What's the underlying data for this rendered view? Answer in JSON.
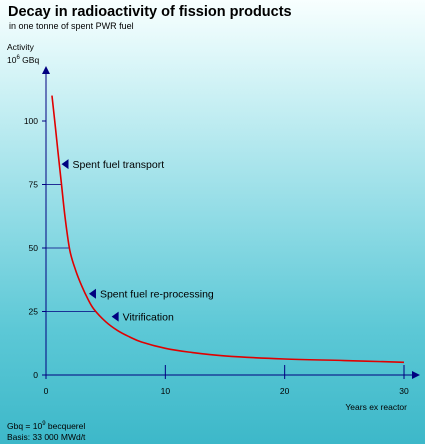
{
  "chart_data": {
    "type": "line",
    "title": "Decay in radioactivity of fission products",
    "subtitle": "in one tonne of spent PWR fuel",
    "ylabel_line1": "Activity",
    "ylabel_line2_base": "10",
    "ylabel_line2_exp": "6",
    "ylabel_line2_unit": " GBq",
    "xlabel": "Years ex reactor",
    "xlim": [
      0,
      30
    ],
    "ylim": [
      0,
      100
    ],
    "x_ticks": [
      0,
      10,
      20,
      30
    ],
    "y_ticks": [
      0,
      25,
      50,
      75,
      100
    ],
    "x_tick_labels": [
      "0",
      "10",
      "20",
      "30"
    ],
    "y_tick_labels": [
      "0",
      "25",
      "50",
      "75",
      "100"
    ],
    "series": [
      {
        "color": "#e00000",
        "x": [
          0.5,
          0.8,
          1.0,
          1.3,
          1.6,
          2.0,
          2.5,
          3.0,
          3.5,
          4.0,
          5.0,
          6.0,
          7.0,
          8.0,
          10.0,
          12.0,
          15.0,
          20.0,
          25.0,
          30.0
        ],
        "y": [
          110,
          97,
          88,
          75,
          62,
          49,
          41,
          35,
          30,
          26,
          21,
          17.5,
          15,
          13,
          10.5,
          9,
          7.5,
          6.3,
          5.7,
          5.0
        ]
      }
    ],
    "annotations": [
      {
        "text": "Spent fuel transport",
        "x": 1.3,
        "y": 83,
        "guide_to_y_axis": true
      },
      {
        "text": "Spent fuel re-processing",
        "x": 3.6,
        "y": 32,
        "guide_to_y_axis": false
      },
      {
        "text": "Vitrification",
        "x": 5.5,
        "y": 23,
        "guide_to_y_axis": false
      }
    ],
    "reference_lines": [
      {
        "x": 1.3,
        "y": 75
      },
      {
        "x": 2.0,
        "y": 50
      },
      {
        "x": 4.2,
        "y": 25
      }
    ],
    "footnote_line1_base": "Gbq = 10",
    "footnote_line1_exp": "9",
    "footnote_line1_unit": " becquerel",
    "footnote_line2": "Basis: 33 000 MWd/t"
  },
  "colors": {
    "curve": "#e00000",
    "axis": "#000080",
    "marker": "#000080"
  }
}
